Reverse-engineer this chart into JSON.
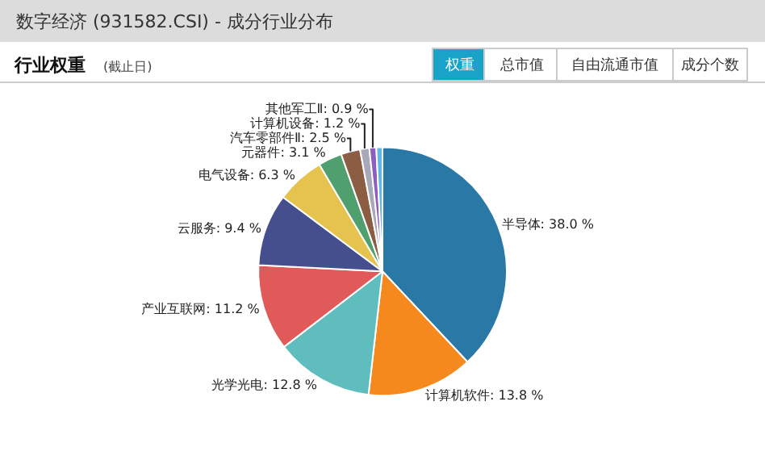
{
  "chart_data": {
    "type": "pie",
    "title": "数字经济 (931582.CSI) - 成分行业分布",
    "subtitle": "行业权重",
    "annotations": [
      "(截止日)",
      "权重",
      "总市值",
      "自由流通市值",
      "成分个数"
    ],
    "categories": [
      "半导体",
      "计算机软件",
      "光学光电",
      "产业互联网",
      "云服务",
      "电气设备",
      "元器件",
      "汽车零部件Ⅱ",
      "计算机设备",
      "其他军工Ⅱ",
      null
    ],
    "values": [
      38.0,
      13.8,
      12.8,
      11.2,
      9.4,
      6.3,
      3.1,
      2.5,
      1.2,
      0.9,
      0.8
    ],
    "value_labels": [
      "38.0 %",
      "13.8 %",
      "12.8 %",
      "11.2 %",
      "9.4 %",
      "6.3 %",
      "3.1 %",
      "2.5 %",
      "1.2 %",
      "0.9 %",
      null
    ],
    "colors": [
      "#2a78a6",
      "#f5891e",
      "#5fbdbd",
      "#e05a5a",
      "#464f8e",
      "#e6c24e",
      "#4fa06e",
      "#8b5e44",
      "#a8a8b8",
      "#8d5dbf",
      "#5bb8e8"
    ],
    "legend": false
  }
}
